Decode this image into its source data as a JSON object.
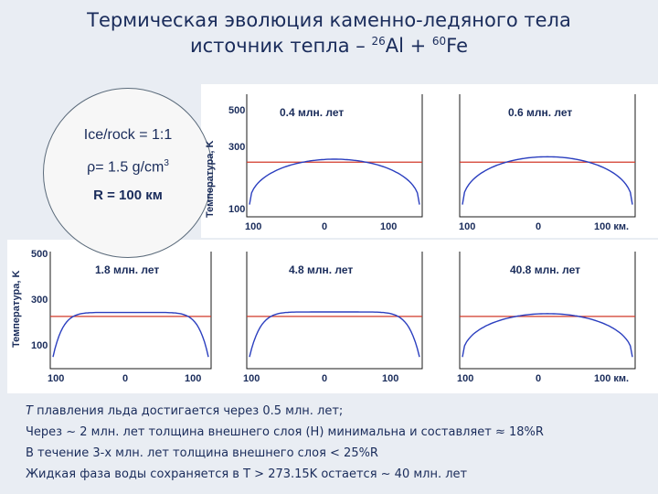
{
  "header": {
    "title_line1": "Термическая эволюция каменно-ледяного тела",
    "title_line2_prefix": "источник тепла – ",
    "title_al_sup": "26",
    "title_al": "Al + ",
    "title_fe_sup": "60",
    "title_fe": "Fe"
  },
  "params": {
    "ice_rock": "Ice/rock = 1:1",
    "density_base": "ρ= 1.5 g/cm",
    "density_sup": "3",
    "radius": "R = 100 км"
  },
  "axes": {
    "ylabel": "Температура, K",
    "top_yticks": [
      "500",
      "300",
      "100"
    ],
    "bottom_yticks": [
      "500",
      "300",
      "100"
    ],
    "xticks": [
      "100",
      "0",
      "100"
    ],
    "xticks_last": [
      "100",
      "0",
      "100 км."
    ]
  },
  "panels_top": [
    {
      "label": "0.4 млн. лет"
    },
    {
      "label": "0.6 млн. лет"
    }
  ],
  "panels_bottom": [
    {
      "label": "1.8 млн. лет"
    },
    {
      "label": "4.8 млн. лет"
    },
    {
      "label": "40.8 млн. лет"
    }
  ],
  "chart_data": [
    {
      "type": "line",
      "label": "0.4 млн. лет",
      "melt_level": 273,
      "profile": "dome",
      "peak": 285,
      "edge": 100
    },
    {
      "type": "line",
      "label": "0.6 млн. лет",
      "melt_level": 273,
      "profile": "dome",
      "peak": 295,
      "edge": 100
    },
    {
      "type": "line",
      "label": "1.8 млн. лет",
      "melt_level": 273,
      "profile": "plateau",
      "peak": 290,
      "edge": 100
    },
    {
      "type": "line",
      "label": "4.8 млн. лет",
      "melt_level": 273,
      "profile": "plateau",
      "peak": 292,
      "edge": 100
    },
    {
      "type": "line",
      "label": "40.8 млн. лет",
      "melt_level": 273,
      "profile": "dome",
      "peak": 285,
      "edge": 100
    }
  ],
  "colors": {
    "profile": "#2b3fbf",
    "melt": "#d23a2a",
    "frame": "#1a1a1a"
  },
  "notes": [
    {
      "italic": "T",
      "text": " плавления льда достигается через 0.5 млн. лет;"
    },
    {
      "italic": "",
      "text": "Через ~ 2 млн. лет толщина внешнего слоя (H) минимальна и составляет ≈ 18%R"
    },
    {
      "italic": "",
      "text": "В течение 3-х млн. лет толщина внешнего слоя < 25%R"
    },
    {
      "italic": "",
      "text": "Жидкая фаза воды сохраняется в  T > 273.15K остается ~ 40 млн. лет"
    }
  ]
}
